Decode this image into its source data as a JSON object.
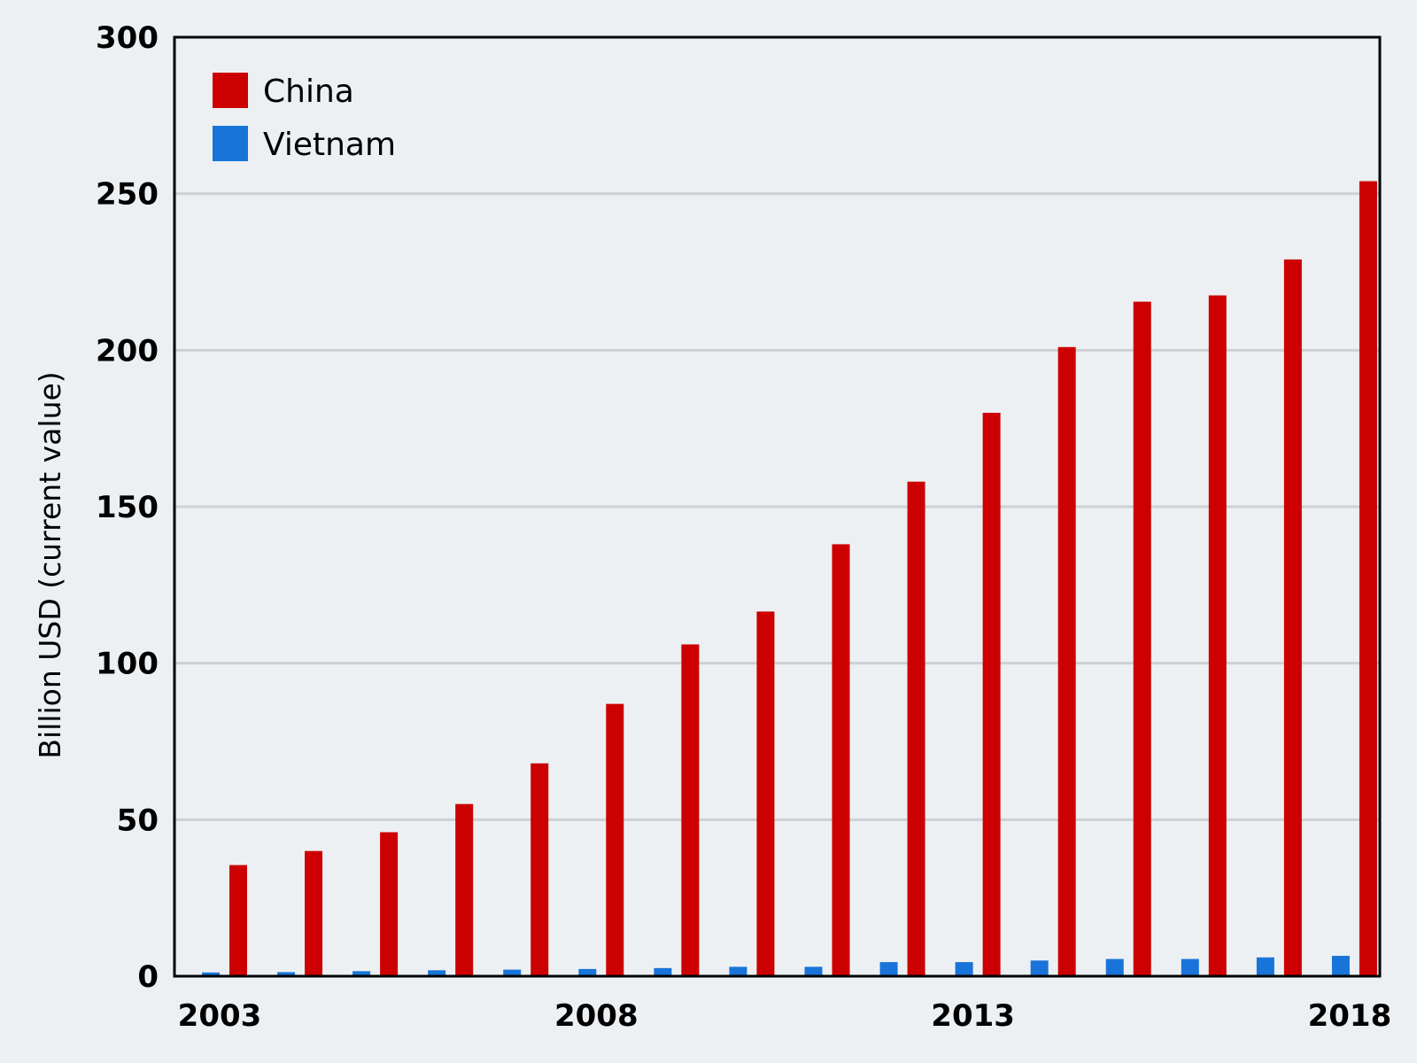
{
  "chart_data": {
    "type": "bar",
    "title": "",
    "xlabel": "",
    "ylabel": "Billion USD (current value)",
    "ylim": [
      0,
      300
    ],
    "y_ticks": [
      0,
      50,
      100,
      150,
      200,
      250,
      300
    ],
    "categories": [
      "2003",
      "2004",
      "2005",
      "2006",
      "2007",
      "2008",
      "2009",
      "2010",
      "2011",
      "2012",
      "2013",
      "2014",
      "2015",
      "2016",
      "2017",
      "2018"
    ],
    "x_tick_labels": [
      "2003",
      "2008",
      "2013",
      "2018"
    ],
    "grid": "horizontal",
    "legend_position": "top-left",
    "series": [
      {
        "name": "China",
        "color": "#cc0000",
        "values": [
          35.5,
          40,
          46,
          55,
          68,
          87,
          106,
          116.5,
          138,
          158,
          180,
          201,
          215.5,
          217.5,
          229,
          254
        ]
      },
      {
        "name": "Vietnam",
        "color": "#1874d8",
        "values": [
          1.2,
          1.3,
          1.6,
          1.9,
          2.1,
          2.3,
          2.6,
          3.0,
          3.0,
          4.5,
          4.5,
          5.0,
          5.5,
          5.5,
          6.0,
          6.5
        ]
      }
    ]
  }
}
